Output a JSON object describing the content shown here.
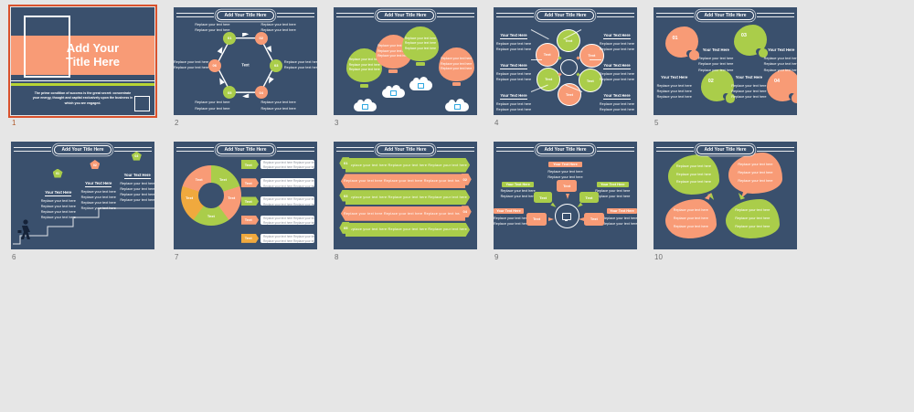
{
  "window": {
    "background_color": "#e6e6e6"
  },
  "palette": {
    "slide_background_navy": "#3a506d",
    "salmon": "#f89b76",
    "green": "#aacd4a",
    "lime_accent": "#b7d433",
    "orange": "#f0a93e",
    "white": "#ffffff",
    "selection_border": "#d9512c",
    "page_number_gray": "#707070",
    "cloud_icon_blue": "#2ea7e0"
  },
  "common": {
    "banner_title": "Add Your Title Here",
    "your_text_heading": "Your Text Here",
    "text_label": "Text",
    "replace_line": "Replace your text here",
    "two_lines": [
      "Replace your text here",
      "Replace your text here"
    ],
    "three_lines": [
      "Replace your text here",
      "Replace your text here",
      "Replace your text here"
    ],
    "four_lines": [
      "Replace your text here",
      "Replace your text here",
      "Replace your text here",
      "Replace your text here"
    ],
    "box_two_lines": [
      "Replace your text here  Replace your text here",
      "Replace your text here  Replace your text here"
    ],
    "triple_line": "Replace your text here  Replace your text here  Replace your text here"
  },
  "slides": {
    "s1": {
      "number": "1",
      "selected": true,
      "title_line1": "Add Your",
      "title_line2": "Title Here",
      "body": "The prime condition of success is the great secret: concentrate your energy, thought and capital exclusively upon the business in which you are engaged."
    },
    "s2": {
      "number": "2",
      "circles": [
        "01",
        "02",
        "03",
        "04",
        "05",
        "06"
      ]
    },
    "s3": {
      "number": "3",
      "cloud_icons": [
        "monitor-icon",
        "home-icon",
        "chart-icon",
        "monitor-icon"
      ]
    },
    "s4": {
      "number": "4"
    },
    "s5": {
      "number": "5",
      "shape_numbers": [
        "01",
        "02",
        "03",
        "04"
      ]
    },
    "s6": {
      "number": "6",
      "pentagon_numbers": [
        "01",
        "02",
        "03"
      ]
    },
    "s7": {
      "number": "7"
    },
    "s8": {
      "number": "8",
      "badge_numbers": [
        "01",
        "02",
        "03",
        "04",
        "05"
      ]
    },
    "s9": {
      "number": "9",
      "center_icon": "monitor-icon"
    },
    "s10": {
      "number": "10"
    }
  }
}
